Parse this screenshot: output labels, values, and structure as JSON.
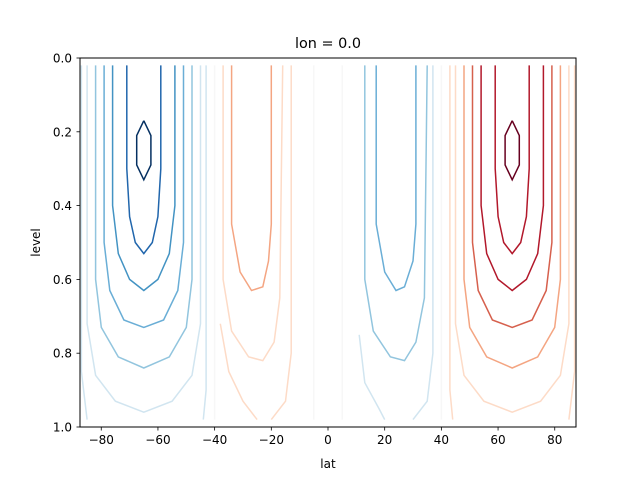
{
  "chart_data": {
    "type": "contour",
    "title": "lon = 0.0",
    "xlabel": "lat",
    "ylabel": "level",
    "xlim": [
      -87.5,
      87.5
    ],
    "ylim": [
      1.0,
      0.0
    ],
    "y_inverted": true,
    "grid": false,
    "x_ticks": [
      "−80",
      "−60",
      "−40",
      "−20",
      "0",
      "20",
      "40",
      "60",
      "80"
    ],
    "y_ticks": [
      "0.0",
      "0.2",
      "0.4",
      "0.6",
      "0.8",
      "1.0"
    ],
    "contour_function": {
      "x_levels": [
        {
          "lat": -85.0,
          "color": "#d1e5f0"
        },
        {
          "lat": -82.0,
          "color": "#92c5de"
        },
        {
          "lat": -79.0,
          "color": "#6aaed6"
        },
        {
          "lat": -76.0,
          "color": "#4393c3"
        },
        {
          "lat": -73.0,
          "color": "#2166ac"
        },
        {
          "lat": -70.0,
          "color": "#053061"
        },
        {
          "lat": -65.0,
          "color": "#053061"
        },
        {
          "lat": -60.0,
          "color": "#053061"
        },
        {
          "lat": -57.0,
          "color": "#2166ac"
        },
        {
          "lat": -54.0,
          "color": "#4393c3"
        },
        {
          "lat": -51.0,
          "color": "#6aaed6"
        },
        {
          "lat": -48.0,
          "color": "#92c5de"
        },
        {
          "lat": -45.0,
          "color": "#d1e5f0"
        },
        {
          "lat": -40.0,
          "color": "#f7f7f7"
        },
        {
          "lat": -36.0,
          "color": "#fddbc7"
        },
        {
          "lat": -33.0,
          "color": "#f4a582"
        },
        {
          "lat": -27.0,
          "color": "#e08a6b"
        },
        {
          "lat": -22.0,
          "color": "#e08a6b"
        },
        {
          "lat": -16.0,
          "color": "#f4a582"
        },
        {
          "lat": -12.0,
          "color": "#fddbc7"
        },
        {
          "lat": -4.0,
          "color": "#f7f7f7"
        },
        {
          "lat": 4.0,
          "color": "#f7f7f7"
        },
        {
          "lat": 12.0,
          "color": "#d1e5f0"
        },
        {
          "lat": 16.0,
          "color": "#92c5de"
        },
        {
          "lat": 22.0,
          "color": "#6aaed6"
        },
        {
          "lat": 27.0,
          "color": "#6aaed6"
        },
        {
          "lat": 33.0,
          "color": "#92c5de"
        },
        {
          "lat": 36.0,
          "color": "#d1e5f0"
        },
        {
          "lat": 40.0,
          "color": "#f7f7f7"
        },
        {
          "lat": 45.0,
          "color": "#fddbc7"
        },
        {
          "lat": 48.0,
          "color": "#f4a582"
        },
        {
          "lat": 51.0,
          "color": "#d6604d"
        },
        {
          "lat": 54.0,
          "color": "#b2182b"
        },
        {
          "lat": 57.0,
          "color": "#67001f"
        },
        {
          "lat": 60.0,
          "color": "#67001f"
        },
        {
          "lat": 65.0,
          "color": "#67001f"
        },
        {
          "lat": 70.0,
          "color": "#67001f"
        },
        {
          "lat": 73.0,
          "color": "#b2182b"
        },
        {
          "lat": 76.0,
          "color": "#d6604d"
        },
        {
          "lat": 79.0,
          "color": "#f4a582"
        },
        {
          "lat": 82.0,
          "color": "#fddbc7"
        },
        {
          "lat": 85.0,
          "color": "#fddbc7"
        }
      ]
    },
    "contours": [
      {
        "name": "neg-4",
        "color": "#053061",
        "path": [
          [
            -65,
            0.17
          ],
          [
            -67.5,
            0.21
          ],
          [
            -67.5,
            0.29
          ],
          [
            -65,
            0.33
          ],
          [
            -62.5,
            0.29
          ],
          [
            -62.5,
            0.21
          ],
          [
            -65,
            0.17
          ]
        ]
      },
      {
        "name": "neg-3",
        "color": "#2166ac",
        "path": [
          [
            -71,
            0.02
          ],
          [
            -71,
            0.3
          ],
          [
            -70,
            0.43
          ],
          [
            -68,
            0.5
          ],
          [
            -65,
            0.53
          ],
          [
            -62,
            0.5
          ],
          [
            -60,
            0.43
          ],
          [
            -59,
            0.3
          ],
          [
            -59,
            0.02
          ]
        ]
      },
      {
        "name": "neg-2",
        "color": "#4393c3",
        "path": [
          [
            -76,
            0.02
          ],
          [
            -76,
            0.4
          ],
          [
            -74,
            0.53
          ],
          [
            -70,
            0.6
          ],
          [
            -65,
            0.63
          ],
          [
            -60,
            0.6
          ],
          [
            -56,
            0.53
          ],
          [
            -54,
            0.4
          ],
          [
            -54,
            0.02
          ]
        ]
      },
      {
        "name": "neg-1",
        "color": "#6aaed6",
        "path": [
          [
            -79,
            0.02
          ],
          [
            -79,
            0.5
          ],
          [
            -77,
            0.63
          ],
          [
            -72,
            0.71
          ],
          [
            -65,
            0.73
          ],
          [
            -58,
            0.71
          ],
          [
            -53,
            0.63
          ],
          [
            -51,
            0.5
          ],
          [
            -51,
            0.02
          ]
        ]
      },
      {
        "name": "neg-0",
        "color": "#92c5de",
        "path": [
          [
            -82,
            0.02
          ],
          [
            -82,
            0.6
          ],
          [
            -80,
            0.73
          ],
          [
            -74,
            0.81
          ],
          [
            -65,
            0.84
          ],
          [
            -56,
            0.81
          ],
          [
            -50,
            0.73
          ],
          [
            -48,
            0.6
          ],
          [
            -48,
            0.02
          ]
        ]
      },
      {
        "name": "neg-a",
        "color": "#d1e5f0",
        "path": [
          [
            -85,
            0.02
          ],
          [
            -85,
            0.72
          ],
          [
            -82,
            0.86
          ],
          [
            -75,
            0.93
          ],
          [
            -65,
            0.96
          ],
          [
            -55,
            0.93
          ],
          [
            -48,
            0.86
          ],
          [
            -45,
            0.72
          ],
          [
            -45,
            0.02
          ]
        ]
      },
      {
        "name": "neg-b",
        "color": "#d1e5f0",
        "path": [
          [
            -87,
            0.02
          ],
          [
            -87,
            0.85
          ],
          [
            -85,
            0.98
          ]
        ]
      },
      {
        "name": "neg-c",
        "color": "#d1e5f0",
        "path": [
          [
            -43,
            0.02
          ],
          [
            -43,
            0.9
          ],
          [
            -44,
            0.98
          ]
        ]
      },
      {
        "name": "zero-l",
        "color": "#f7f7f7",
        "path": [
          [
            -40,
            0.02
          ],
          [
            -40,
            0.98
          ]
        ]
      },
      {
        "name": "pos-l1",
        "color": "#f4a582",
        "path": [
          [
            -34,
            0.02
          ],
          [
            -34,
            0.45
          ],
          [
            -31,
            0.58
          ],
          [
            -27,
            0.63
          ],
          [
            -23,
            0.62
          ],
          [
            -21,
            0.55
          ],
          [
            -20,
            0.45
          ],
          [
            -20,
            0.02
          ]
        ]
      },
      {
        "name": "pos-l0",
        "color": "#fddbc7",
        "path": [
          [
            -37,
            0.02
          ],
          [
            -37,
            0.6
          ],
          [
            -34,
            0.74
          ],
          [
            -28,
            0.81
          ],
          [
            -23,
            0.82
          ],
          [
            -19,
            0.77
          ],
          [
            -17,
            0.65
          ],
          [
            -16,
            0.02
          ]
        ]
      },
      {
        "name": "pos-la",
        "color": "#fddbc7",
        "path": [
          [
            -38,
            0.72
          ],
          [
            -35,
            0.85
          ],
          [
            -30,
            0.93
          ],
          [
            -25,
            0.98
          ]
        ]
      },
      {
        "name": "pos-lb",
        "color": "#fddbc7",
        "path": [
          [
            -13,
            0.02
          ],
          [
            -13,
            0.8
          ],
          [
            -15,
            0.93
          ],
          [
            -20,
            0.98
          ]
        ]
      },
      {
        "name": "zero-c",
        "color": "#f7f7f7",
        "path": [
          [
            -5,
            0.02
          ],
          [
            -5,
            0.98
          ]
        ]
      },
      {
        "name": "zero-c2",
        "color": "#f7f7f7",
        "path": [
          [
            5,
            0.02
          ],
          [
            5,
            0.98
          ]
        ]
      },
      {
        "name": "neg-m1",
        "color": "#6aaed6",
        "path": [
          [
            17,
            0.02
          ],
          [
            17,
            0.45
          ],
          [
            20,
            0.58
          ],
          [
            24,
            0.63
          ],
          [
            27,
            0.62
          ],
          [
            30,
            0.55
          ],
          [
            31,
            0.45
          ],
          [
            31,
            0.02
          ]
        ]
      },
      {
        "name": "neg-m0",
        "color": "#92c5de",
        "path": [
          [
            13,
            0.02
          ],
          [
            13,
            0.6
          ],
          [
            16,
            0.74
          ],
          [
            22,
            0.81
          ],
          [
            27,
            0.82
          ],
          [
            31,
            0.77
          ],
          [
            34,
            0.65
          ],
          [
            35,
            0.02
          ]
        ]
      },
      {
        "name": "neg-ma",
        "color": "#d1e5f0",
        "path": [
          [
            11,
            0.75
          ],
          [
            13,
            0.88
          ],
          [
            18,
            0.95
          ],
          [
            20,
            0.98
          ]
        ]
      },
      {
        "name": "neg-mb",
        "color": "#d1e5f0",
        "path": [
          [
            37,
            0.02
          ],
          [
            37,
            0.8
          ],
          [
            35,
            0.93
          ],
          [
            30,
            0.98
          ]
        ]
      },
      {
        "name": "zero-r",
        "color": "#f7f7f7",
        "path": [
          [
            40,
            0.02
          ],
          [
            40,
            0.98
          ]
        ]
      },
      {
        "name": "pos-4",
        "color": "#67001f",
        "path": [
          [
            65,
            0.17
          ],
          [
            62.5,
            0.21
          ],
          [
            62.5,
            0.29
          ],
          [
            65,
            0.33
          ],
          [
            67.5,
            0.29
          ],
          [
            67.5,
            0.21
          ],
          [
            65,
            0.17
          ]
        ]
      },
      {
        "name": "pos-3",
        "color": "#b2182b",
        "path": [
          [
            59,
            0.02
          ],
          [
            59,
            0.3
          ],
          [
            60,
            0.43
          ],
          [
            62,
            0.5
          ],
          [
            65,
            0.53
          ],
          [
            68,
            0.5
          ],
          [
            70,
            0.43
          ],
          [
            71,
            0.3
          ],
          [
            71,
            0.02
          ]
        ]
      },
      {
        "name": "pos-2",
        "color": "#b2182b",
        "path": [
          [
            54,
            0.02
          ],
          [
            54,
            0.4
          ],
          [
            56,
            0.53
          ],
          [
            60,
            0.6
          ],
          [
            65,
            0.63
          ],
          [
            70,
            0.6
          ],
          [
            74,
            0.53
          ],
          [
            76,
            0.4
          ],
          [
            76,
            0.02
          ]
        ]
      },
      {
        "name": "pos-1",
        "color": "#d6604d",
        "path": [
          [
            51,
            0.02
          ],
          [
            51,
            0.5
          ],
          [
            53,
            0.63
          ],
          [
            58,
            0.71
          ],
          [
            65,
            0.73
          ],
          [
            72,
            0.71
          ],
          [
            77,
            0.63
          ],
          [
            79,
            0.5
          ],
          [
            79,
            0.02
          ]
        ]
      },
      {
        "name": "pos-0",
        "color": "#f4a582",
        "path": [
          [
            48,
            0.02
          ],
          [
            48,
            0.6
          ],
          [
            50,
            0.73
          ],
          [
            56,
            0.81
          ],
          [
            65,
            0.84
          ],
          [
            74,
            0.81
          ],
          [
            80,
            0.73
          ],
          [
            82,
            0.6
          ],
          [
            82,
            0.02
          ]
        ]
      },
      {
        "name": "pos-a",
        "color": "#fddbc7",
        "path": [
          [
            45,
            0.02
          ],
          [
            45,
            0.72
          ],
          [
            48,
            0.86
          ],
          [
            55,
            0.93
          ],
          [
            65,
            0.96
          ],
          [
            75,
            0.93
          ],
          [
            82,
            0.86
          ],
          [
            85,
            0.72
          ],
          [
            85,
            0.02
          ]
        ]
      },
      {
        "name": "pos-b",
        "color": "#fddbc7",
        "path": [
          [
            43,
            0.02
          ],
          [
            43,
            0.9
          ],
          [
            44,
            0.98
          ]
        ]
      },
      {
        "name": "pos-c",
        "color": "#fddbc7",
        "path": [
          [
            87,
            0.02
          ],
          [
            87,
            0.85
          ],
          [
            85,
            0.98
          ]
        ]
      }
    ]
  }
}
